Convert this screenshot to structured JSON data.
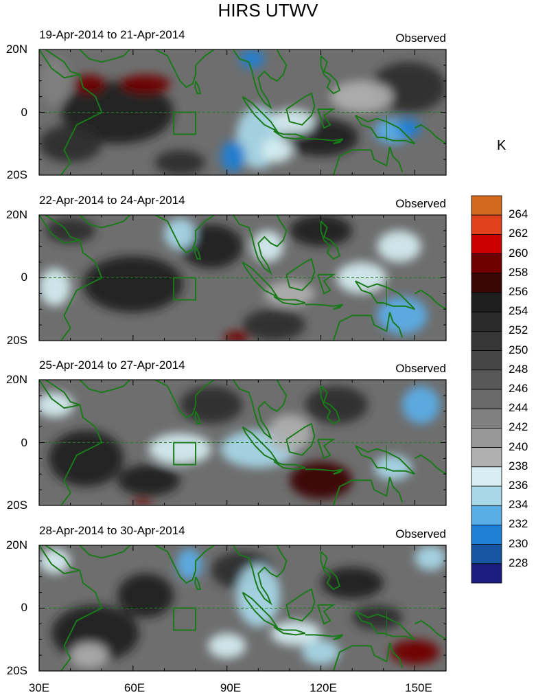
{
  "title": "HIRS UTWV",
  "unit": "K",
  "panels": [
    {
      "period": "19-Apr-2014 to 21-Apr-2014",
      "tag": "Observed"
    },
    {
      "period": "22-Apr-2014 to 24-Apr-2014",
      "tag": "Observed"
    },
    {
      "period": "25-Apr-2014 to 27-Apr-2014",
      "tag": "Observed"
    },
    {
      "period": "28-Apr-2014 to 30-Apr-2014",
      "tag": "Observed"
    }
  ],
  "lat_labels": [
    "20N",
    "0",
    "20S"
  ],
  "lon_labels": [
    "30E",
    "60E",
    "90E",
    "120E",
    "150E"
  ],
  "colorbar": {
    "labels": [
      "264",
      "262",
      "260",
      "258",
      "256",
      "254",
      "252",
      "250",
      "248",
      "246",
      "244",
      "242",
      "240",
      "238",
      "236",
      "234",
      "232",
      "230",
      "228"
    ],
    "colors": [
      "#d2691e",
      "#e0401a",
      "#cc0000",
      "#700000",
      "#3a0606",
      "#1e1e1e",
      "#2a2a2a",
      "#363636",
      "#464646",
      "#585858",
      "#6a6a6a",
      "#808080",
      "#989898",
      "#b0b0b0",
      "#d6eef2",
      "#a8d8e8",
      "#5aaee8",
      "#1f7fd4",
      "#1855a0",
      "#1c1c80"
    ]
  },
  "coast_color": "#1a7a1a"
}
